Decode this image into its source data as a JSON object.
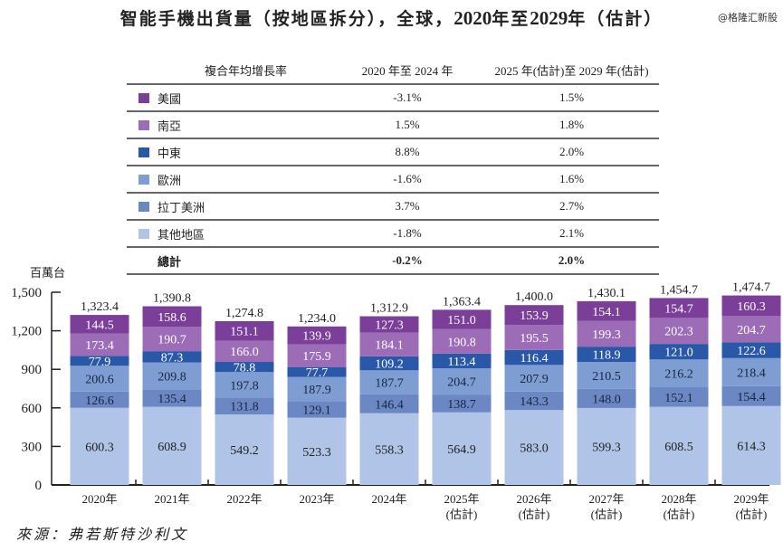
{
  "title": {
    "prefix": "智能手機出貨量（按地區拆分），全球，",
    "start_year": "2020",
    "mid": "年至",
    "end_year": "2029",
    "suffix": "年（估計）"
  },
  "watermark": "@格隆汇新股",
  "cagr_table": {
    "header": {
      "label": "複合年均增長率",
      "col1": "2020 年至 2024 年",
      "col2": "2025 年(估計)至 2029 年(估計)"
    },
    "rows": [
      {
        "region": "美國",
        "color": "#7b3f99",
        "cagr_2020_2024": "-3.1%",
        "cagr_2025_2029": "1.5%"
      },
      {
        "region": "南亞",
        "color": "#9c6cb6",
        "cagr_2020_2024": "1.5%",
        "cagr_2025_2029": "1.8%"
      },
      {
        "region": "中東",
        "color": "#2a58a8",
        "cagr_2020_2024": "8.8%",
        "cagr_2025_2029": "2.0%"
      },
      {
        "region": "歐洲",
        "color": "#7d9dd3",
        "cagr_2020_2024": "-1.6%",
        "cagr_2025_2029": "1.6%"
      },
      {
        "region": "拉丁美洲",
        "color": "#6b87c4",
        "cagr_2020_2024": "3.7%",
        "cagr_2025_2029": "2.7%"
      },
      {
        "region": "其他地區",
        "color": "#afc4e6",
        "cagr_2020_2024": "-1.8%",
        "cagr_2025_2029": "2.1%"
      }
    ],
    "total": {
      "label": "總計",
      "cagr_2020_2024": "-0.2%",
      "cagr_2025_2029": "2.0%"
    }
  },
  "source": "來源：弗若斯特沙利文",
  "chart_data": {
    "type": "bar",
    "stacked": true,
    "title": "智能手機出貨量（按地區拆分），全球，2020年至2029年（估計）",
    "ylabel": "百萬台",
    "xlabel": "",
    "ylim": [
      0,
      1500
    ],
    "yticks": [
      0,
      300,
      600,
      900,
      1200,
      1500
    ],
    "ytick_labels": [
      "0",
      "300",
      "600",
      "900",
      "1,200",
      "1,500"
    ],
    "grid": false,
    "categories": [
      "2020年",
      "2021年",
      "2022年",
      "2023年",
      "2024年",
      "2025年",
      "2026年",
      "2027年",
      "2028年",
      "2029年"
    ],
    "category_sublabels": [
      "",
      "",
      "",
      "",
      "",
      "(估計)",
      "(估計)",
      "(估計)",
      "(估計)",
      "(估計)"
    ],
    "series": [
      {
        "name": "其他地區",
        "color": "#afc4e6",
        "label_color": "#222222",
        "values": [
          600.3,
          608.9,
          549.2,
          523.3,
          558.3,
          564.9,
          583.0,
          599.3,
          608.5,
          614.3
        ]
      },
      {
        "name": "拉丁美洲",
        "color": "#6b87c4",
        "label_color": "#1a2540",
        "values": [
          126.6,
          135.4,
          131.8,
          129.1,
          146.4,
          138.7,
          143.3,
          148.0,
          152.1,
          154.4
        ]
      },
      {
        "name": "歐洲",
        "color": "#7d9dd3",
        "label_color": "#1a2540",
        "values": [
          200.6,
          209.8,
          197.8,
          187.9,
          187.7,
          204.7,
          207.9,
          210.5,
          216.2,
          218.4
        ]
      },
      {
        "name": "中東",
        "color": "#2a58a8",
        "label_color": "#ffffff",
        "values": [
          77.9,
          87.3,
          78.8,
          77.7,
          109.2,
          113.4,
          116.4,
          118.9,
          121.0,
          122.6
        ]
      },
      {
        "name": "南亞",
        "color": "#9c6cb6",
        "label_color": "#ffffff",
        "values": [
          173.4,
          190.7,
          166.0,
          175.9,
          184.1,
          190.8,
          195.5,
          199.3,
          202.3,
          204.7
        ]
      },
      {
        "name": "美國",
        "color": "#7b3f99",
        "label_color": "#ffffff",
        "values": [
          144.5,
          158.6,
          151.1,
          139.9,
          127.3,
          151.0,
          153.9,
          154.1,
          154.7,
          160.3
        ]
      }
    ],
    "totals": [
      1323.4,
      1390.8,
      1274.8,
      1234.0,
      1312.9,
      1363.4,
      1400.0,
      1430.1,
      1454.7,
      1474.7
    ],
    "total_labels": [
      "1,323.4",
      "1,390.8",
      "1,274.8",
      "1,234.0",
      "1,312.9",
      "1,363.4",
      "1,400.0",
      "1,430.1",
      "1,454.7",
      "1,474.7"
    ],
    "legend": "table-above"
  }
}
